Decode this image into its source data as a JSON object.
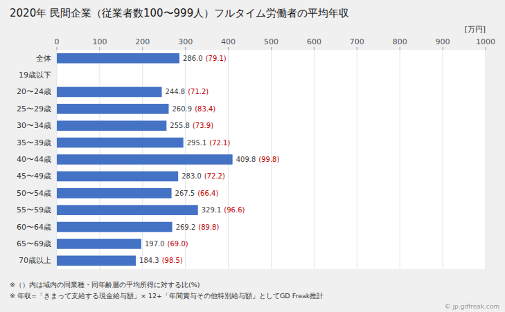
{
  "chart_data": {
    "type": "bar",
    "orientation": "horizontal",
    "title": "2020年 民間企業（従業者数100〜999人）フルタイム労働者の平均年収",
    "xlabel": "[万円]",
    "categories": [
      "全体",
      "19歳以下",
      "20〜24歳",
      "25〜29歳",
      "30〜34歳",
      "35〜39歳",
      "40〜44歳",
      "45〜49歳",
      "50〜54歳",
      "55〜59歳",
      "60〜64歳",
      "65〜69歳",
      "70歳以上"
    ],
    "values": [
      286.0,
      0,
      244.8,
      260.9,
      255.8,
      295.1,
      409.8,
      283.0,
      267.5,
      329.1,
      269.2,
      197.0,
      184.3
    ],
    "value_labels": [
      "286.0",
      null,
      "244.8",
      "260.9",
      "255.8",
      "295.1",
      "409.8",
      "283.0",
      "267.5",
      "329.1",
      "269.2",
      "197.0",
      "184.3"
    ],
    "ratio_labels": [
      "(79.1)",
      null,
      "(71.2)",
      "(83.4)",
      "(73.9)",
      "(72.1)",
      "(99.8)",
      "(72.2)",
      "(66.4)",
      "(96.6)",
      "(89.8)",
      "(69.0)",
      "(98.5)"
    ],
    "color": "#4472C4",
    "xlim": [
      0,
      1000
    ],
    "xticks": [
      0,
      100,
      200,
      300,
      400,
      500,
      600,
      700,
      800,
      900,
      1000
    ],
    "grid": true,
    "data_labels": true,
    "annotations": [
      "※（）内は域内の同業種・同年齢層の平均所得に対する比(%)",
      "※ 年収=「きまって支給する現金給与額」× 12+「年間賞与その他特別給与額」としてGD Freak推計",
      "© jp.gdfreak.com"
    ]
  }
}
